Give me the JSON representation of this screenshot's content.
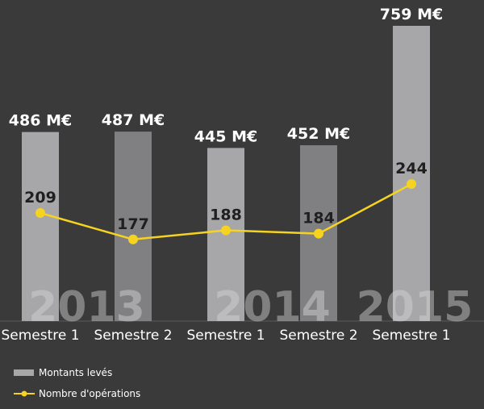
{
  "chart_data": {
    "type": "bar",
    "categories": [
      "Semestre 1",
      "Semestre 2",
      "Semestre 1",
      "Semestre 2",
      "Semestre 1"
    ],
    "year_groups": [
      {
        "label": "2013",
        "categories": [
          0,
          1
        ]
      },
      {
        "label": "2014",
        "categories": [
          2,
          3
        ]
      },
      {
        "label": "2015",
        "categories": [
          4
        ]
      }
    ],
    "series": [
      {
        "name": "Montants levés",
        "type": "bar",
        "values": [
          486,
          487,
          445,
          452,
          759
        ],
        "value_labels": [
          "486 M€",
          "487 M€",
          "445 M€",
          "452 M€",
          "759 M€"
        ],
        "colors": [
          "#a7a7a9",
          "#808083",
          "#a7a7a9",
          "#808083",
          "#a7a7a9"
        ]
      },
      {
        "name": "Nombre d'opérations",
        "type": "line",
        "values": [
          209,
          177,
          188,
          184,
          244
        ],
        "value_labels": [
          "209",
          "177",
          "188",
          "184",
          "244"
        ],
        "color": "#f6d321"
      }
    ],
    "legend": {
      "position": "bottom-left",
      "entries": [
        "Montants levés",
        "Nombre d'opérations"
      ]
    },
    "grid": false,
    "title": "",
    "xlabel": "",
    "ylabel": ""
  }
}
